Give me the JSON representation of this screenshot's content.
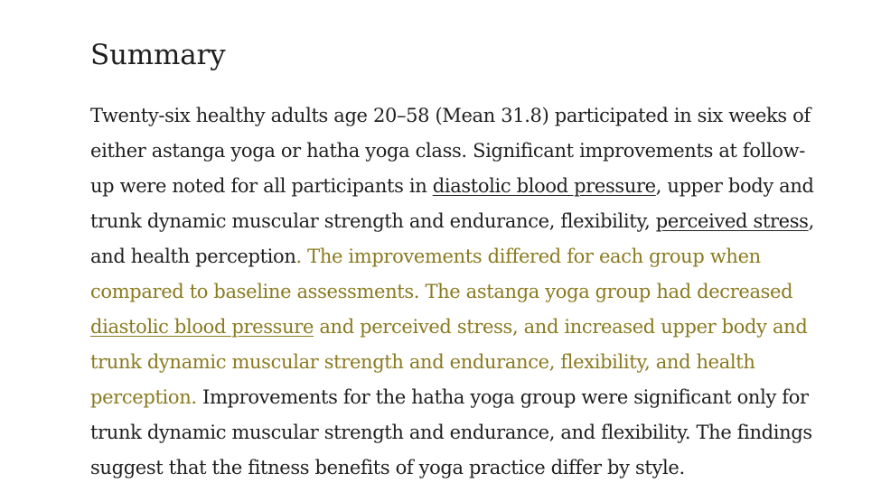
{
  "summary": {
    "heading": "Summary",
    "lines": {
      "l1": "Twenty-six healthy adults age 20–58 (Mean 31.8) participated in six weeks of",
      "l2": "either astanga yoga or hatha yoga class. Significant improvements at follow-",
      "l3a": "up were noted for all participants in ",
      "l3link": "diastolic blood pressure",
      "l3b": ", upper body and",
      "l4a": "trunk dynamic muscular strength and endurance, flexibility, ",
      "l4link": "perceived stress",
      "l4b": ",",
      "l5a": "and health perception",
      "l5hl": ". The improvements differed for each group when",
      "l6hl": "compared to baseline assessments. The astanga yoga group had decreased",
      "l7link": "diastolic blood pressure",
      "l7hl": " and perceived stress, and increased upper body and",
      "l8hl": "trunk dynamic muscular strength and endurance, flexibility, and health",
      "l9hl": "perception.",
      "l9b": " Improvements for the hatha yoga group were significant only for",
      "l10": "trunk dynamic muscular strength and endurance, and flexibility. The findings",
      "l11": "suggest that the fitness benefits of yoga practice differ by style."
    }
  },
  "colors": {
    "highlight": "#ffdd57",
    "highlight_text": "#8a7a1f",
    "body_text": "#1f1f1f"
  }
}
